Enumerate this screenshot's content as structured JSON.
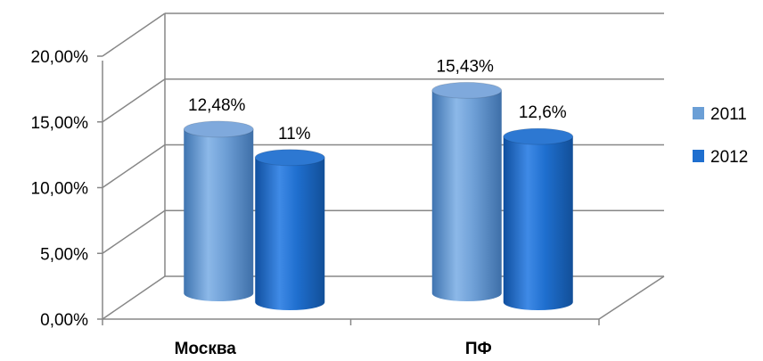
{
  "chart_data": {
    "type": "bar",
    "categories": [
      "Москва",
      "ПФ"
    ],
    "series": [
      {
        "name": "2011",
        "values": [
          12.48,
          15.43
        ],
        "labels": [
          "12,48%",
          "15,43%"
        ],
        "color": "#6b9fd6"
      },
      {
        "name": "2012",
        "values": [
          11,
          12.6
        ],
        "labels": [
          "11%",
          "12,6%"
        ],
        "color": "#1f6fcf"
      }
    ],
    "y_ticks": [
      "0,00%",
      "5,00%",
      "10,00%",
      "15,00%",
      "20,00%"
    ],
    "ylim": [
      0,
      20
    ],
    "grid": true,
    "legend_position": "right",
    "style": "3d-cylinder"
  }
}
